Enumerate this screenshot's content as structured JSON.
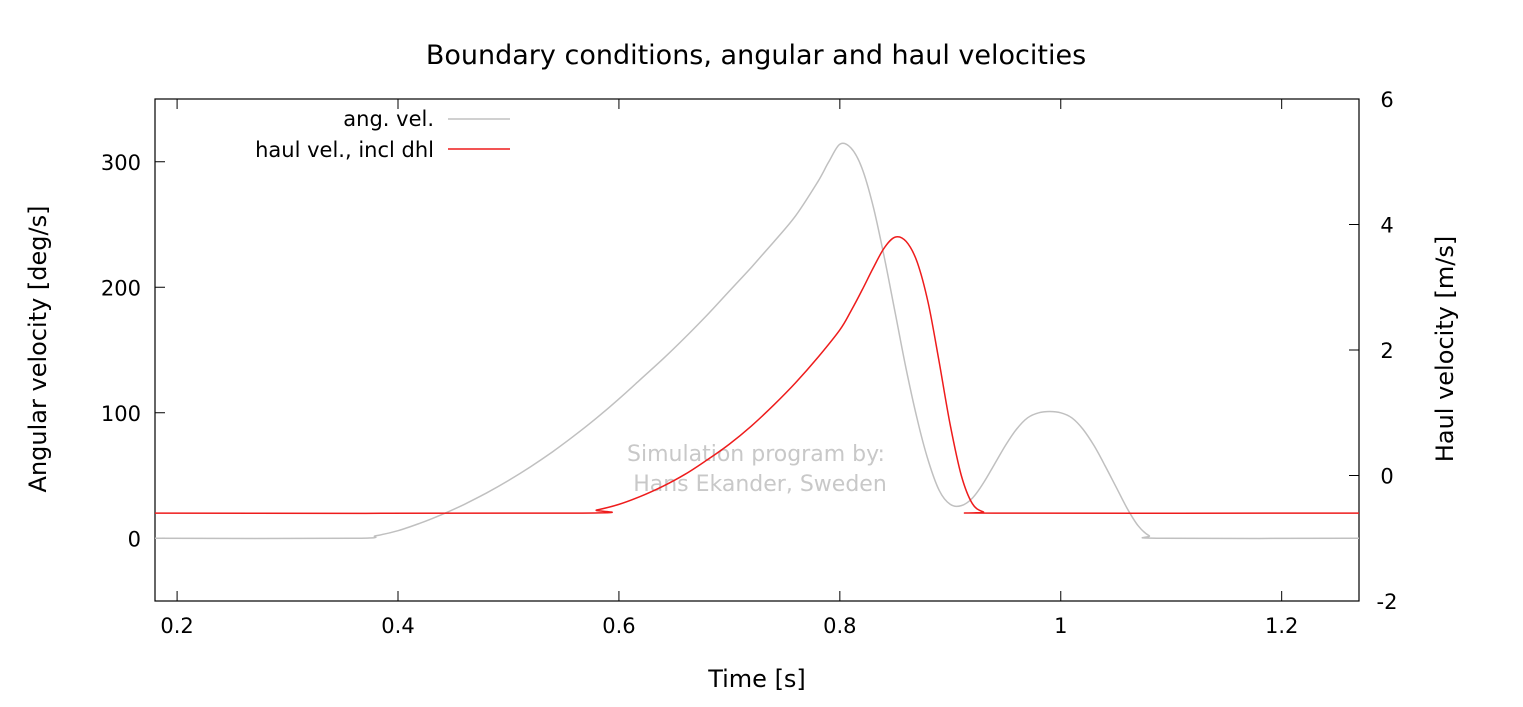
{
  "chart_data": {
    "type": "line",
    "title": "Boundary conditions, angular and haul velocities",
    "xlabel": "Time [s]",
    "ylabel": "Angular velocity [deg/s]",
    "y2label": "Haul velocity [m/s]",
    "xlim": [
      0.18,
      1.27
    ],
    "ylim": [
      -50,
      350
    ],
    "y2lim": [
      -2,
      6
    ],
    "xticks": [
      0.2,
      0.4,
      0.6,
      0.8,
      1.0,
      1.2
    ],
    "xtick_labels": [
      "0.2",
      "0.4",
      "0.6",
      "0.8",
      "1",
      "1.2"
    ],
    "yticks": [
      0,
      100,
      200,
      300
    ],
    "ytick_labels": [
      "0",
      "100",
      "200",
      "300"
    ],
    "y2ticks": [
      -2,
      0,
      2,
      4,
      6
    ],
    "y2tick_labels": [
      "-2",
      "0",
      "2",
      "4",
      "6"
    ],
    "grid": false,
    "legend_position": "top-left",
    "series": [
      {
        "name": "ang. vel.",
        "axis": "left",
        "color": "#c0c0c0",
        "x": [
          0.18,
          0.36,
          0.38,
          0.4,
          0.42,
          0.44,
          0.46,
          0.48,
          0.5,
          0.52,
          0.54,
          0.56,
          0.58,
          0.6,
          0.62,
          0.64,
          0.66,
          0.68,
          0.7,
          0.72,
          0.74,
          0.76,
          0.78,
          0.79,
          0.8,
          0.81,
          0.82,
          0.83,
          0.84,
          0.85,
          0.86,
          0.87,
          0.88,
          0.89,
          0.9,
          0.91,
          0.92,
          0.93,
          0.94,
          0.95,
          0.96,
          0.97,
          0.98,
          0.99,
          1.0,
          1.01,
          1.02,
          1.03,
          1.04,
          1.05,
          1.06,
          1.07,
          1.08,
          1.09,
          1.27
        ],
        "y": [
          0,
          0,
          2,
          6,
          12,
          19,
          27,
          36,
          46,
          57,
          69,
          82,
          96,
          111,
          127,
          143,
          160,
          178,
          197,
          216,
          236,
          257,
          284,
          300,
          314,
          311,
          295,
          265,
          225,
          180,
          135,
          95,
          62,
          38,
          27,
          26,
          32,
          44,
          59,
          74,
          87,
          96,
          100,
          101,
          100,
          96,
          87,
          74,
          58,
          41,
          24,
          10,
          2,
          0,
          0
        ]
      },
      {
        "name": "haul vel., incl dhl",
        "axis": "right",
        "color": "#ee1c1c",
        "x": [
          0.18,
          0.56,
          0.58,
          0.6,
          0.62,
          0.64,
          0.66,
          0.68,
          0.7,
          0.72,
          0.74,
          0.76,
          0.78,
          0.8,
          0.81,
          0.82,
          0.83,
          0.84,
          0.85,
          0.86,
          0.87,
          0.88,
          0.89,
          0.9,
          0.91,
          0.92,
          0.93,
          0.94,
          1.27
        ],
        "y": [
          -0.6,
          -0.6,
          -0.55,
          -0.46,
          -0.33,
          -0.17,
          0.02,
          0.25,
          0.5,
          0.79,
          1.12,
          1.48,
          1.88,
          2.32,
          2.62,
          2.95,
          3.3,
          3.62,
          3.8,
          3.73,
          3.4,
          2.75,
          1.8,
          0.8,
          0.0,
          -0.45,
          -0.58,
          -0.6,
          -0.6
        ]
      }
    ],
    "annotation": [
      "Simulation program by:",
      "Hans Ekander, Sweden"
    ]
  }
}
